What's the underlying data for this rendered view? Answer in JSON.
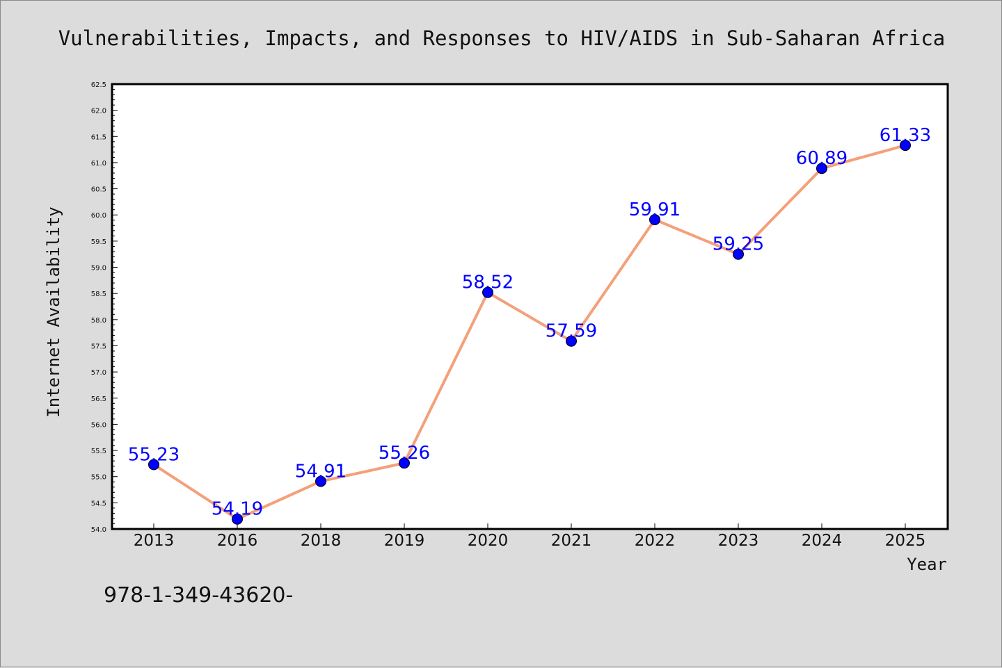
{
  "chart_data": {
    "type": "line",
    "title": "Vulnerabilities, Impacts, and Responses to HIV/AIDS in Sub-Saharan Africa",
    "xlabel": "Year",
    "ylabel": "Internet Availability",
    "categories": [
      "2013",
      "2016",
      "2018",
      "2019",
      "2020",
      "2021",
      "2022",
      "2023",
      "2024",
      "2025"
    ],
    "values": [
      55.23,
      54.19,
      54.91,
      55.26,
      58.52,
      57.59,
      59.91,
      59.25,
      60.89,
      61.33
    ],
    "data_labels": [
      "55.23",
      "54.19",
      "54.91",
      "55.26",
      "58.52",
      "57.59",
      "59.91",
      "59.25",
      "60.89",
      "61.33"
    ],
    "ylim": [
      54.0,
      62.5
    ],
    "yticks": [
      "54.0",
      "54.5",
      "55.0",
      "55.5",
      "56.0",
      "56.5",
      "57.0",
      "57.5",
      "58.0",
      "58.5",
      "59.0",
      "59.5",
      "60.0",
      "60.5",
      "61.0",
      "61.5",
      "62.0",
      "62.5"
    ],
    "grid": false,
    "line_color": "#f4a07a",
    "marker_color": "#0000ff",
    "label_color": "#0000ff"
  },
  "footer_text": "978-1-349-43620-"
}
